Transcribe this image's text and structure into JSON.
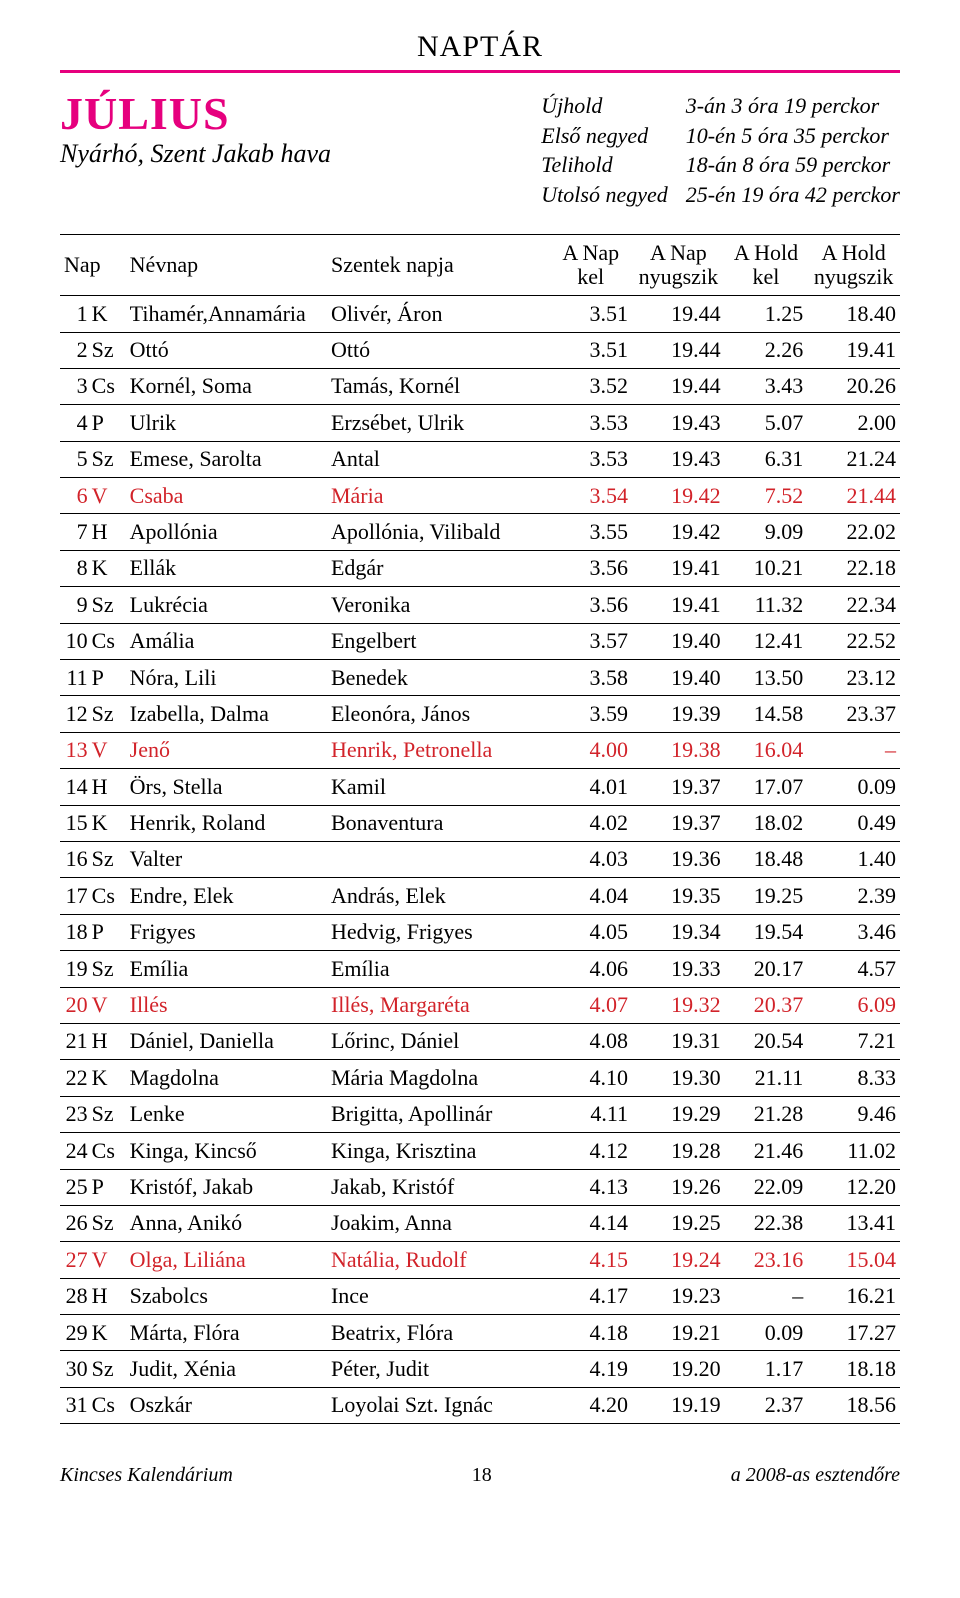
{
  "colors": {
    "magenta": "#e6007e",
    "red": "#d2232a",
    "black": "#000000",
    "rule": "#000000"
  },
  "header": {
    "calendar_title": "NAPTÁR",
    "month": "JÚLIUS",
    "subtitle": "Nyárhó, Szent Jakab hava"
  },
  "moon": {
    "phases": [
      {
        "label": "Újhold",
        "time": "3-án 3 óra 19 perckor"
      },
      {
        "label": "Első negyed",
        "time": "10-én 5 óra 35 perckor"
      },
      {
        "label": "Telihold",
        "time": "18-án 8 óra 59 perckor"
      },
      {
        "label": "Utolsó negyed",
        "time": "25-én 19 óra 42 perckor"
      }
    ]
  },
  "table": {
    "headers": {
      "nap": "Nap",
      "nevnap": "Névnap",
      "szentek": "Szentek napja",
      "nap_kel": "A Nap\nkel",
      "nap_ny": "A Nap\nnyugszik",
      "hold_kel": "A Hold\nkel",
      "hold_ny": "A Hold\nnyugszik"
    },
    "rows": [
      {
        "n": "1",
        "d": "K",
        "nev": "Tihamér,Annamária",
        "sz": "Olivér, Áron",
        "nk": "3.51",
        "nn": "19.44",
        "hk": "1.25",
        "hn": "18.40",
        "red": false
      },
      {
        "n": "2",
        "d": "Sz",
        "nev": "Ottó",
        "sz": "Ottó",
        "nk": "3.51",
        "nn": "19.44",
        "hk": "2.26",
        "hn": "19.41",
        "red": false
      },
      {
        "n": "3",
        "d": "Cs",
        "nev": "Kornél, Soma",
        "sz": "Tamás, Kornél",
        "nk": "3.52",
        "nn": "19.44",
        "hk": "3.43",
        "hn": "20.26",
        "red": false
      },
      {
        "n": "4",
        "d": "P",
        "nev": "Ulrik",
        "sz": "Erzsébet, Ulrik",
        "nk": "3.53",
        "nn": "19.43",
        "hk": "5.07",
        "hn": "2.00",
        "red": false
      },
      {
        "n": "5",
        "d": "Sz",
        "nev": "Emese, Sarolta",
        "sz": "Antal",
        "nk": "3.53",
        "nn": "19.43",
        "hk": "6.31",
        "hn": "21.24",
        "red": false
      },
      {
        "n": "6",
        "d": "V",
        "nev": "Csaba",
        "sz": "Mária",
        "nk": "3.54",
        "nn": "19.42",
        "hk": "7.52",
        "hn": "21.44",
        "red": true
      },
      {
        "n": "7",
        "d": "H",
        "nev": "Apollónia",
        "sz": "Apollónia, Vilibald",
        "nk": "3.55",
        "nn": "19.42",
        "hk": "9.09",
        "hn": "22.02",
        "red": false
      },
      {
        "n": "8",
        "d": "K",
        "nev": "Ellák",
        "sz": "Edgár",
        "nk": "3.56",
        "nn": "19.41",
        "hk": "10.21",
        "hn": "22.18",
        "red": false
      },
      {
        "n": "9",
        "d": "Sz",
        "nev": "Lukrécia",
        "sz": "Veronika",
        "nk": "3.56",
        "nn": "19.41",
        "hk": "11.32",
        "hn": "22.34",
        "red": false
      },
      {
        "n": "10",
        "d": "Cs",
        "nev": "Amália",
        "sz": "Engelbert",
        "nk": "3.57",
        "nn": "19.40",
        "hk": "12.41",
        "hn": "22.52",
        "red": false
      },
      {
        "n": "11",
        "d": "P",
        "nev": "Nóra, Lili",
        "sz": "Benedek",
        "nk": "3.58",
        "nn": "19.40",
        "hk": "13.50",
        "hn": "23.12",
        "red": false
      },
      {
        "n": "12",
        "d": "Sz",
        "nev": "Izabella, Dalma",
        "sz": "Eleonóra, János",
        "nk": "3.59",
        "nn": "19.39",
        "hk": "14.58",
        "hn": "23.37",
        "red": false
      },
      {
        "n": "13",
        "d": "V",
        "nev": "Jenő",
        "sz": "Henrik, Petronella",
        "nk": "4.00",
        "nn": "19.38",
        "hk": "16.04",
        "hn": "–",
        "red": true
      },
      {
        "n": "14",
        "d": "H",
        "nev": "Örs, Stella",
        "sz": "Kamil",
        "nk": "4.01",
        "nn": "19.37",
        "hk": "17.07",
        "hn": "0.09",
        "red": false
      },
      {
        "n": "15",
        "d": "K",
        "nev": "Henrik, Roland",
        "sz": "Bonaventura",
        "nk": "4.02",
        "nn": "19.37",
        "hk": "18.02",
        "hn": "0.49",
        "red": false
      },
      {
        "n": "16",
        "d": "Sz",
        "nev": "Valter",
        "sz": "",
        "nk": "4.03",
        "nn": "19.36",
        "hk": "18.48",
        "hn": "1.40",
        "red": false
      },
      {
        "n": "17",
        "d": "Cs",
        "nev": "Endre, Elek",
        "sz": "András, Elek",
        "nk": "4.04",
        "nn": "19.35",
        "hk": "19.25",
        "hn": "2.39",
        "red": false
      },
      {
        "n": "18",
        "d": "P",
        "nev": "Frigyes",
        "sz": "Hedvig, Frigyes",
        "nk": "4.05",
        "nn": "19.34",
        "hk": "19.54",
        "hn": "3.46",
        "red": false
      },
      {
        "n": "19",
        "d": "Sz",
        "nev": "Emília",
        "sz": "Emília",
        "nk": "4.06",
        "nn": "19.33",
        "hk": "20.17",
        "hn": "4.57",
        "red": false
      },
      {
        "n": "20",
        "d": "V",
        "nev": "Illés",
        "sz": "Illés, Margaréta",
        "nk": "4.07",
        "nn": "19.32",
        "hk": "20.37",
        "hn": "6.09",
        "red": true
      },
      {
        "n": "21",
        "d": "H",
        "nev": "Dániel, Daniella",
        "sz": "Lőrinc, Dániel",
        "nk": "4.08",
        "nn": "19.31",
        "hk": "20.54",
        "hn": "7.21",
        "red": false
      },
      {
        "n": "22",
        "d": "K",
        "nev": "Magdolna",
        "sz": "Mária Magdolna",
        "nk": "4.10",
        "nn": "19.30",
        "hk": "21.11",
        "hn": "8.33",
        "red": false
      },
      {
        "n": "23",
        "d": "Sz",
        "nev": "Lenke",
        "sz": "Brigitta, Apollinár",
        "nk": "4.11",
        "nn": "19.29",
        "hk": "21.28",
        "hn": "9.46",
        "red": false
      },
      {
        "n": "24",
        "d": "Cs",
        "nev": "Kinga, Kincső",
        "sz": "Kinga, Krisztina",
        "nk": "4.12",
        "nn": "19.28",
        "hk": "21.46",
        "hn": "11.02",
        "red": false
      },
      {
        "n": "25",
        "d": "P",
        "nev": "Kristóf, Jakab",
        "sz": "Jakab, Kristóf",
        "nk": "4.13",
        "nn": "19.26",
        "hk": "22.09",
        "hn": "12.20",
        "red": false
      },
      {
        "n": "26",
        "d": "Sz",
        "nev": "Anna, Anikó",
        "sz": "Joakim, Anna",
        "nk": "4.14",
        "nn": "19.25",
        "hk": "22.38",
        "hn": "13.41",
        "red": false
      },
      {
        "n": "27",
        "d": "V",
        "nev": "Olga, Liliána",
        "sz": "Natália, Rudolf",
        "nk": "4.15",
        "nn": "19.24",
        "hk": "23.16",
        "hn": "15.04",
        "red": true
      },
      {
        "n": "28",
        "d": "H",
        "nev": "Szabolcs",
        "sz": "Ince",
        "nk": "4.17",
        "nn": "19.23",
        "hk": "–",
        "hn": "16.21",
        "red": false
      },
      {
        "n": "29",
        "d": "K",
        "nev": "Márta, Flóra",
        "sz": "Beatrix, Flóra",
        "nk": "4.18",
        "nn": "19.21",
        "hk": "0.09",
        "hn": "17.27",
        "red": false
      },
      {
        "n": "30",
        "d": "Sz",
        "nev": "Judit, Xénia",
        "sz": "Péter, Judit",
        "nk": "4.19",
        "nn": "19.20",
        "hk": "1.17",
        "hn": "18.18",
        "red": false
      },
      {
        "n": "31",
        "d": "Cs",
        "nev": "Oszkár",
        "sz": "Loyolai Szt. Ignác",
        "nk": "4.20",
        "nn": "19.19",
        "hk": "2.37",
        "hn": "18.56",
        "red": false
      }
    ]
  },
  "footer": {
    "left": "Kincses Kalendárium",
    "page": "18",
    "right": "a 2008-as esztendőre"
  }
}
